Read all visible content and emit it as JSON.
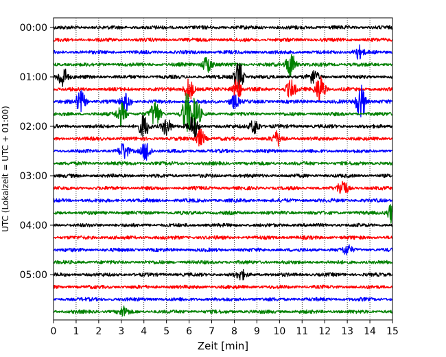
{
  "chart_data": {
    "type": "line",
    "xlabel": "Zeit  [min]",
    "ylabel": "UTC (Lokalzeit = UTC + 01:00)",
    "xlim": [
      0,
      15
    ],
    "x_ticks": [
      "0",
      "1",
      "2",
      "3",
      "4",
      "5",
      "6",
      "7",
      "8",
      "9",
      "10",
      "11",
      "12",
      "13",
      "14",
      "15"
    ],
    "y_ticks": [
      "00:00",
      "01:00",
      "02:00",
      "03:00",
      "04:00",
      "05:00"
    ],
    "traces_per_hour": 4,
    "trace_count": 24,
    "trace_color_cycle": [
      "#000000",
      "#ff0000",
      "#0000ff",
      "#008000"
    ],
    "grid": "vertical dotted lines at each minute",
    "events": [
      {
        "trace": 2,
        "minute": 13.5,
        "amp": 0.6
      },
      {
        "trace": 3,
        "minute": 6.8,
        "amp": 0.8
      },
      {
        "trace": 3,
        "minute": 10.5,
        "amp": 1.2
      },
      {
        "trace": 4,
        "minute": 0.4,
        "amp": 1.0
      },
      {
        "trace": 4,
        "minute": 8.2,
        "amp": 1.3
      },
      {
        "trace": 4,
        "minute": 11.5,
        "amp": 0.6
      },
      {
        "trace": 5,
        "minute": 6.0,
        "amp": 1.0
      },
      {
        "trace": 5,
        "minute": 8.1,
        "amp": 1.1
      },
      {
        "trace": 5,
        "minute": 10.5,
        "amp": 0.8
      },
      {
        "trace": 5,
        "minute": 11.8,
        "amp": 1.3
      },
      {
        "trace": 6,
        "minute": 1.2,
        "amp": 1.0
      },
      {
        "trace": 6,
        "minute": 3.2,
        "amp": 0.8
      },
      {
        "trace": 6,
        "minute": 8.0,
        "amp": 0.6
      },
      {
        "trace": 6,
        "minute": 13.6,
        "amp": 1.6
      },
      {
        "trace": 7,
        "minute": 3.0,
        "amp": 1.0
      },
      {
        "trace": 7,
        "minute": 4.5,
        "amp": 1.2
      },
      {
        "trace": 7,
        "minute": 5.9,
        "amp": 1.8
      },
      {
        "trace": 7,
        "minute": 6.3,
        "amp": 1.4
      },
      {
        "trace": 8,
        "minute": 4.0,
        "amp": 1.0
      },
      {
        "trace": 8,
        "minute": 5.0,
        "amp": 0.8
      },
      {
        "trace": 8,
        "minute": 6.2,
        "amp": 1.0
      },
      {
        "trace": 8,
        "minute": 8.9,
        "amp": 0.7
      },
      {
        "trace": 9,
        "minute": 6.5,
        "amp": 0.8
      },
      {
        "trace": 9,
        "minute": 9.9,
        "amp": 0.6
      },
      {
        "trace": 10,
        "minute": 3.1,
        "amp": 0.7
      },
      {
        "trace": 10,
        "minute": 4.1,
        "amp": 0.9
      },
      {
        "trace": 13,
        "minute": 12.8,
        "amp": 0.8
      },
      {
        "trace": 15,
        "minute": 15.0,
        "amp": 1.0
      },
      {
        "trace": 18,
        "minute": 13.0,
        "amp": 0.4
      },
      {
        "trace": 20,
        "minute": 8.3,
        "amp": 0.4
      },
      {
        "trace": 23,
        "minute": 3.1,
        "amp": 0.4
      }
    ]
  }
}
